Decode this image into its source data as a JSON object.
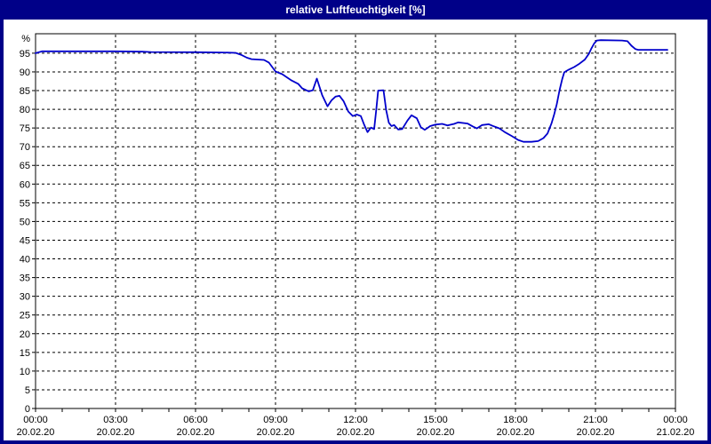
{
  "window": {
    "title": "relative Luftfeuchtigkeit [%]"
  },
  "colors": {
    "frame": "#000088",
    "title_bg": "#000088",
    "title_text": "#ffffff",
    "plot_bg": "#ffffff",
    "plot_border": "#000000",
    "grid": "#000000",
    "tick": "#000000",
    "label": "#000000",
    "line": "#0000cc"
  },
  "chart_data": {
    "type": "line",
    "title": "relative Luftfeuchtigkeit [%]",
    "xlabel": "",
    "ylabel": "%",
    "ylim": [
      0,
      100.2
    ],
    "xlim_hours": [
      0,
      24
    ],
    "grid": true,
    "legend": "none",
    "y_ticks": [
      0,
      5,
      10,
      15,
      20,
      25,
      30,
      35,
      40,
      45,
      50,
      55,
      60,
      65,
      70,
      75,
      80,
      85,
      90,
      95
    ],
    "x_minor_tick_every_hours": 1,
    "x_ticks": [
      {
        "hour": 0,
        "time": "00:00",
        "date": "20.02.20"
      },
      {
        "hour": 3,
        "time": "03:00",
        "date": "20.02.20"
      },
      {
        "hour": 6,
        "time": "06:00",
        "date": "20.02.20"
      },
      {
        "hour": 9,
        "time": "09:00",
        "date": "20.02.20"
      },
      {
        "hour": 12,
        "time": "12:00",
        "date": "20.02.20"
      },
      {
        "hour": 15,
        "time": "15:00",
        "date": "20.02.20"
      },
      {
        "hour": 18,
        "time": "18:00",
        "date": "20.02.20"
      },
      {
        "hour": 21,
        "time": "21:00",
        "date": "20.02.20"
      },
      {
        "hour": 24,
        "time": "00:00",
        "date": "21.02.20"
      }
    ],
    "series": [
      {
        "name": "relative Luftfeuchtigkeit",
        "unit": "%",
        "points": [
          [
            0.0,
            95.0
          ],
          [
            0.25,
            95.5
          ],
          [
            3.0,
            95.5
          ],
          [
            4.0,
            95.4
          ],
          [
            4.33,
            95.3
          ],
          [
            6.0,
            95.25
          ],
          [
            7.0,
            95.2
          ],
          [
            7.5,
            95.1
          ],
          [
            7.7,
            94.6
          ],
          [
            7.93,
            93.8
          ],
          [
            8.1,
            93.4
          ],
          [
            8.57,
            93.2
          ],
          [
            8.75,
            92.5
          ],
          [
            9.0,
            90.1
          ],
          [
            9.25,
            89.4
          ],
          [
            9.6,
            87.7
          ],
          [
            9.85,
            86.8
          ],
          [
            10.0,
            85.6
          ],
          [
            10.25,
            84.8
          ],
          [
            10.4,
            85.1
          ],
          [
            10.55,
            88.2
          ],
          [
            10.75,
            83.8
          ],
          [
            10.95,
            80.8
          ],
          [
            11.1,
            82.4
          ],
          [
            11.25,
            83.4
          ],
          [
            11.4,
            83.6
          ],
          [
            11.55,
            82.2
          ],
          [
            11.73,
            79.4
          ],
          [
            11.9,
            78.2
          ],
          [
            12.05,
            78.6
          ],
          [
            12.2,
            78.2
          ],
          [
            12.33,
            75.8
          ],
          [
            12.45,
            73.9
          ],
          [
            12.58,
            75.1
          ],
          [
            12.7,
            74.7
          ],
          [
            12.78,
            80.0
          ],
          [
            12.85,
            85.0
          ],
          [
            13.05,
            85.1
          ],
          [
            13.15,
            79.8
          ],
          [
            13.25,
            76.4
          ],
          [
            13.35,
            75.5
          ],
          [
            13.45,
            75.8
          ],
          [
            13.6,
            74.6
          ],
          [
            13.75,
            74.7
          ],
          [
            13.95,
            77.0
          ],
          [
            14.1,
            78.4
          ],
          [
            14.3,
            77.6
          ],
          [
            14.45,
            75.2
          ],
          [
            14.6,
            74.5
          ],
          [
            14.8,
            75.5
          ],
          [
            15.0,
            75.9
          ],
          [
            15.25,
            76.1
          ],
          [
            15.45,
            75.7
          ],
          [
            15.7,
            76.1
          ],
          [
            15.85,
            76.5
          ],
          [
            16.2,
            76.2
          ],
          [
            16.4,
            75.4
          ],
          [
            16.55,
            74.9
          ],
          [
            16.75,
            75.8
          ],
          [
            17.0,
            76.0
          ],
          [
            17.2,
            75.4
          ],
          [
            17.4,
            74.9
          ],
          [
            17.6,
            73.9
          ],
          [
            17.85,
            72.9
          ],
          [
            18.1,
            71.8
          ],
          [
            18.3,
            71.3
          ],
          [
            18.6,
            71.3
          ],
          [
            18.85,
            71.5
          ],
          [
            19.05,
            72.3
          ],
          [
            19.2,
            73.5
          ],
          [
            19.35,
            76.2
          ],
          [
            19.45,
            78.6
          ],
          [
            19.55,
            81.4
          ],
          [
            19.65,
            85.0
          ],
          [
            19.75,
            88.0
          ],
          [
            19.83,
            89.9
          ],
          [
            20.0,
            90.6
          ],
          [
            20.2,
            91.3
          ],
          [
            20.4,
            92.2
          ],
          [
            20.6,
            93.3
          ],
          [
            20.75,
            94.8
          ],
          [
            20.85,
            96.3
          ],
          [
            20.95,
            97.6
          ],
          [
            21.05,
            98.4
          ],
          [
            21.2,
            98.5
          ],
          [
            22.0,
            98.4
          ],
          [
            22.2,
            98.2
          ],
          [
            22.35,
            97.0
          ],
          [
            22.5,
            96.1
          ],
          [
            22.6,
            95.9
          ],
          [
            23.7,
            95.9
          ]
        ]
      }
    ]
  }
}
